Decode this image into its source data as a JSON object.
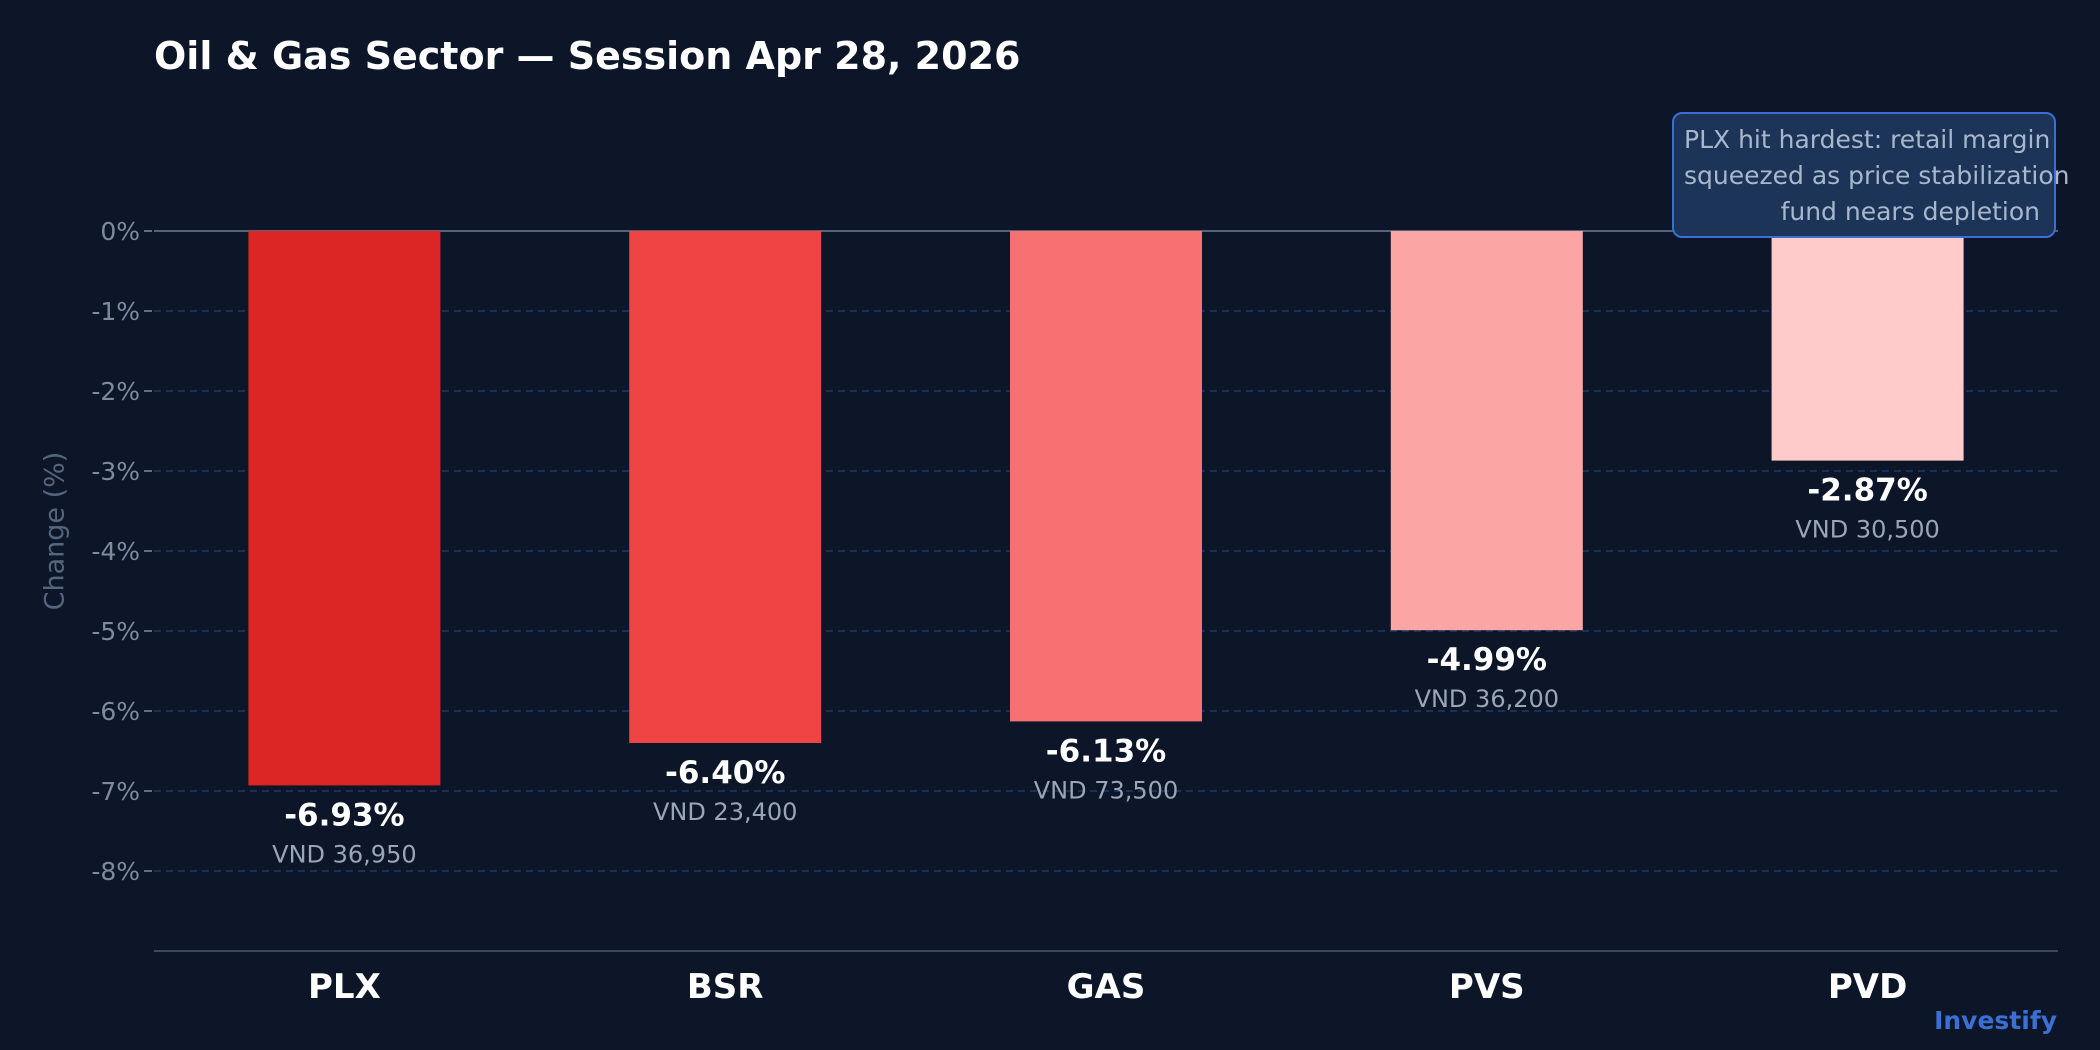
{
  "chart_data": {
    "type": "bar",
    "title": "Oil & Gas Sector — Session Apr 28, 2026",
    "ylabel": "Change (%)",
    "xlabel": "",
    "ylim": [
      -9,
      0
    ],
    "y_ticks": [
      0,
      -1,
      -2,
      -3,
      -4,
      -5,
      -6,
      -7,
      -8
    ],
    "y_tick_labels": [
      "0%",
      "-1%",
      "-2%",
      "-3%",
      "-4%",
      "-5%",
      "-6%",
      "-7%",
      "-8%"
    ],
    "grid": true,
    "categories": [
      "PLX",
      "BSR",
      "GAS",
      "PVS",
      "PVD"
    ],
    "values": [
      -6.93,
      -6.4,
      -6.13,
      -4.99,
      -2.87
    ],
    "value_labels": [
      "-6.93%",
      "-6.40%",
      "-6.13%",
      "-4.99%",
      "-2.87%"
    ],
    "price_labels": [
      "VND 36,950",
      "VND 23,400",
      "VND 73,500",
      "VND 36,200",
      "VND 30,500"
    ],
    "bar_colors": [
      "#dc2626",
      "#ef4444",
      "#f87171",
      "#fca5a5",
      "#fecaca"
    ],
    "annotation": {
      "lines": [
        "PLX hit hardest: retail margin",
        "squeezed as price stabilization",
        "fund nears depletion"
      ],
      "placement": "top-right"
    }
  },
  "brand": "Investify",
  "colors": {
    "background": "#0c1628",
    "title": "#ffffff",
    "axis_text": "#56657e",
    "tick_text": "#7d8ba1",
    "grid": "#1f3a64",
    "zero_line": "#54627a",
    "value_label": "#ffffff",
    "price_label": "#9aa6b8",
    "brand": "#3b6fd4",
    "annotation_bg": "#1c3457",
    "annotation_border": "#3b6fd4",
    "annotation_text": "#a9b7cc"
  }
}
